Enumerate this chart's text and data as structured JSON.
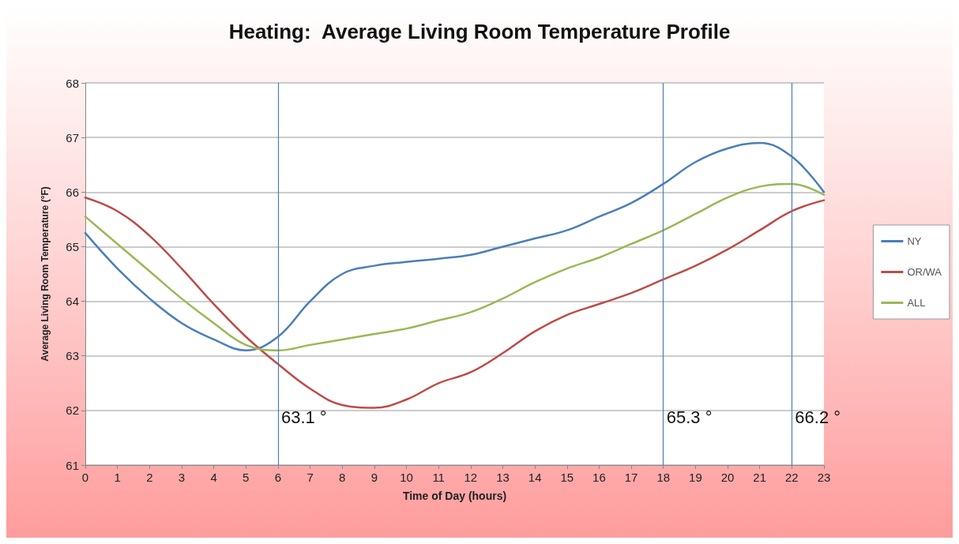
{
  "chart_data": {
    "type": "line",
    "title": "Heating:  Average Living Room Temperature Profile",
    "xlabel": "Time of Day (hours)",
    "ylabel": "Average Living Room Temperature (°F)",
    "x": [
      0,
      1,
      2,
      3,
      4,
      5,
      6,
      7,
      8,
      9,
      10,
      11,
      12,
      13,
      14,
      15,
      16,
      17,
      18,
      19,
      20,
      21,
      22,
      23
    ],
    "series": [
      {
        "name": "NY",
        "color": "#4a7ebb",
        "values": [
          65.25,
          64.6,
          64.05,
          63.6,
          63.3,
          63.1,
          63.35,
          64.0,
          64.5,
          64.65,
          64.72,
          64.78,
          64.85,
          65.0,
          65.15,
          65.3,
          65.55,
          65.8,
          66.15,
          66.55,
          66.8,
          66.9,
          66.65,
          66.0
        ]
      },
      {
        "name": "OR/WA",
        "color": "#be4b48",
        "values": [
          65.9,
          65.65,
          65.2,
          64.6,
          63.95,
          63.35,
          62.85,
          62.4,
          62.1,
          62.05,
          62.2,
          62.5,
          62.7,
          63.05,
          63.45,
          63.75,
          63.95,
          64.15,
          64.4,
          64.65,
          64.95,
          65.3,
          65.65,
          65.85
        ]
      },
      {
        "name": "ALL",
        "color": "#98b954",
        "values": [
          65.55,
          65.05,
          64.55,
          64.05,
          63.6,
          63.2,
          63.1,
          63.2,
          63.3,
          63.4,
          63.5,
          63.65,
          63.8,
          64.05,
          64.35,
          64.6,
          64.8,
          65.05,
          65.3,
          65.6,
          65.9,
          66.1,
          66.15,
          65.95
        ]
      }
    ],
    "ref_lines": [
      {
        "axis": "x",
        "value": 6
      },
      {
        "axis": "x",
        "value": 18
      },
      {
        "axis": "x",
        "value": 22
      }
    ],
    "annotations": [
      "63.1 °",
      "65.3 °",
      "66.2 °"
    ],
    "xlim": [
      0,
      23
    ],
    "xticks": [
      0,
      1,
      2,
      3,
      4,
      5,
      6,
      7,
      8,
      9,
      10,
      11,
      12,
      13,
      14,
      15,
      16,
      17,
      18,
      19,
      20,
      21,
      22,
      23
    ],
    "ylim": [
      61,
      68
    ],
    "yticks": [
      61,
      62,
      63,
      64,
      65,
      66,
      67,
      68
    ],
    "grid": "y",
    "legend": "right",
    "marker": "none",
    "line_style": "solid"
  }
}
